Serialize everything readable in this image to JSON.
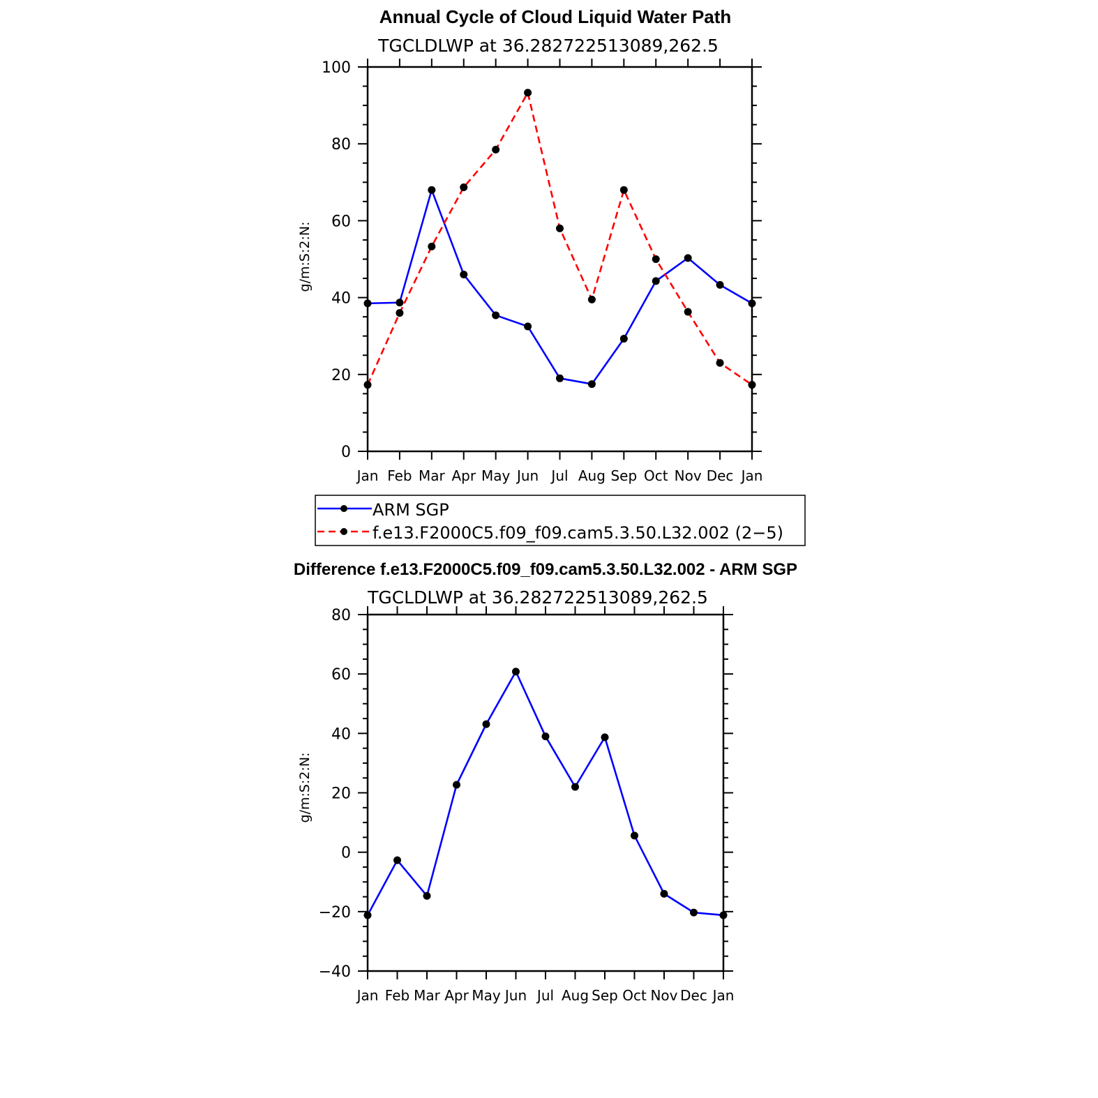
{
  "chart_data": [
    {
      "type": "line",
      "title": "Annual Cycle of Cloud Liquid Water Path",
      "subtitle": "TGCLDLWP  at  36.282722513089,262.5",
      "xlabel": "",
      "ylabel": "g/m:S:2:N:",
      "categories": [
        "Jan",
        "Feb",
        "Mar",
        "Apr",
        "May",
        "Jun",
        "Jul",
        "Aug",
        "Sep",
        "Oct",
        "Nov",
        "Dec",
        "Jan"
      ],
      "yticks": [
        "0",
        "20",
        "40",
        "60",
        "80",
        "100"
      ],
      "ylim": [
        0,
        100
      ],
      "legend_position": "below",
      "series": [
        {
          "name": "ARM  SGP",
          "color": "#0000ff",
          "dash": "solid",
          "values": [
            38.5,
            38.7,
            68,
            46,
            35.4,
            32.5,
            19,
            17.5,
            29.3,
            44.3,
            50.3,
            43.3,
            38.5
          ]
        },
        {
          "name": "f.e13.F2000C5.f09_f09.cam5.3.50.L32.002  (2−5)",
          "color": "#ff0000",
          "dash": "dashed",
          "values": [
            17.3,
            36,
            53.3,
            68.7,
            78.5,
            93.3,
            58,
            39.5,
            68,
            50,
            36.3,
            23,
            17.3
          ]
        }
      ]
    },
    {
      "type": "line",
      "title": "Difference f.e13.F2000C5.f09_f09.cam5.3.50.L32.002 - ARM SGP",
      "subtitle": "TGCLDLWP  at  36.282722513089,262.5",
      "xlabel": "",
      "ylabel": "g/m:S:2:N:",
      "categories": [
        "Jan",
        "Feb",
        "Mar",
        "Apr",
        "May",
        "Jun",
        "Jul",
        "Aug",
        "Sep",
        "Oct",
        "Nov",
        "Dec",
        "Jan"
      ],
      "yticks": [
        "−40",
        "−20",
        "0",
        "20",
        "40",
        "60",
        "80"
      ],
      "ylim": [
        -40,
        80
      ],
      "series": [
        {
          "name": "Difference",
          "color": "#0000ff",
          "dash": "solid",
          "values": [
            -21.2,
            -2.7,
            -14.7,
            22.7,
            43.1,
            60.8,
            39,
            22,
            38.7,
            5.6,
            -14,
            -20.3,
            -21.2
          ]
        }
      ]
    }
  ]
}
